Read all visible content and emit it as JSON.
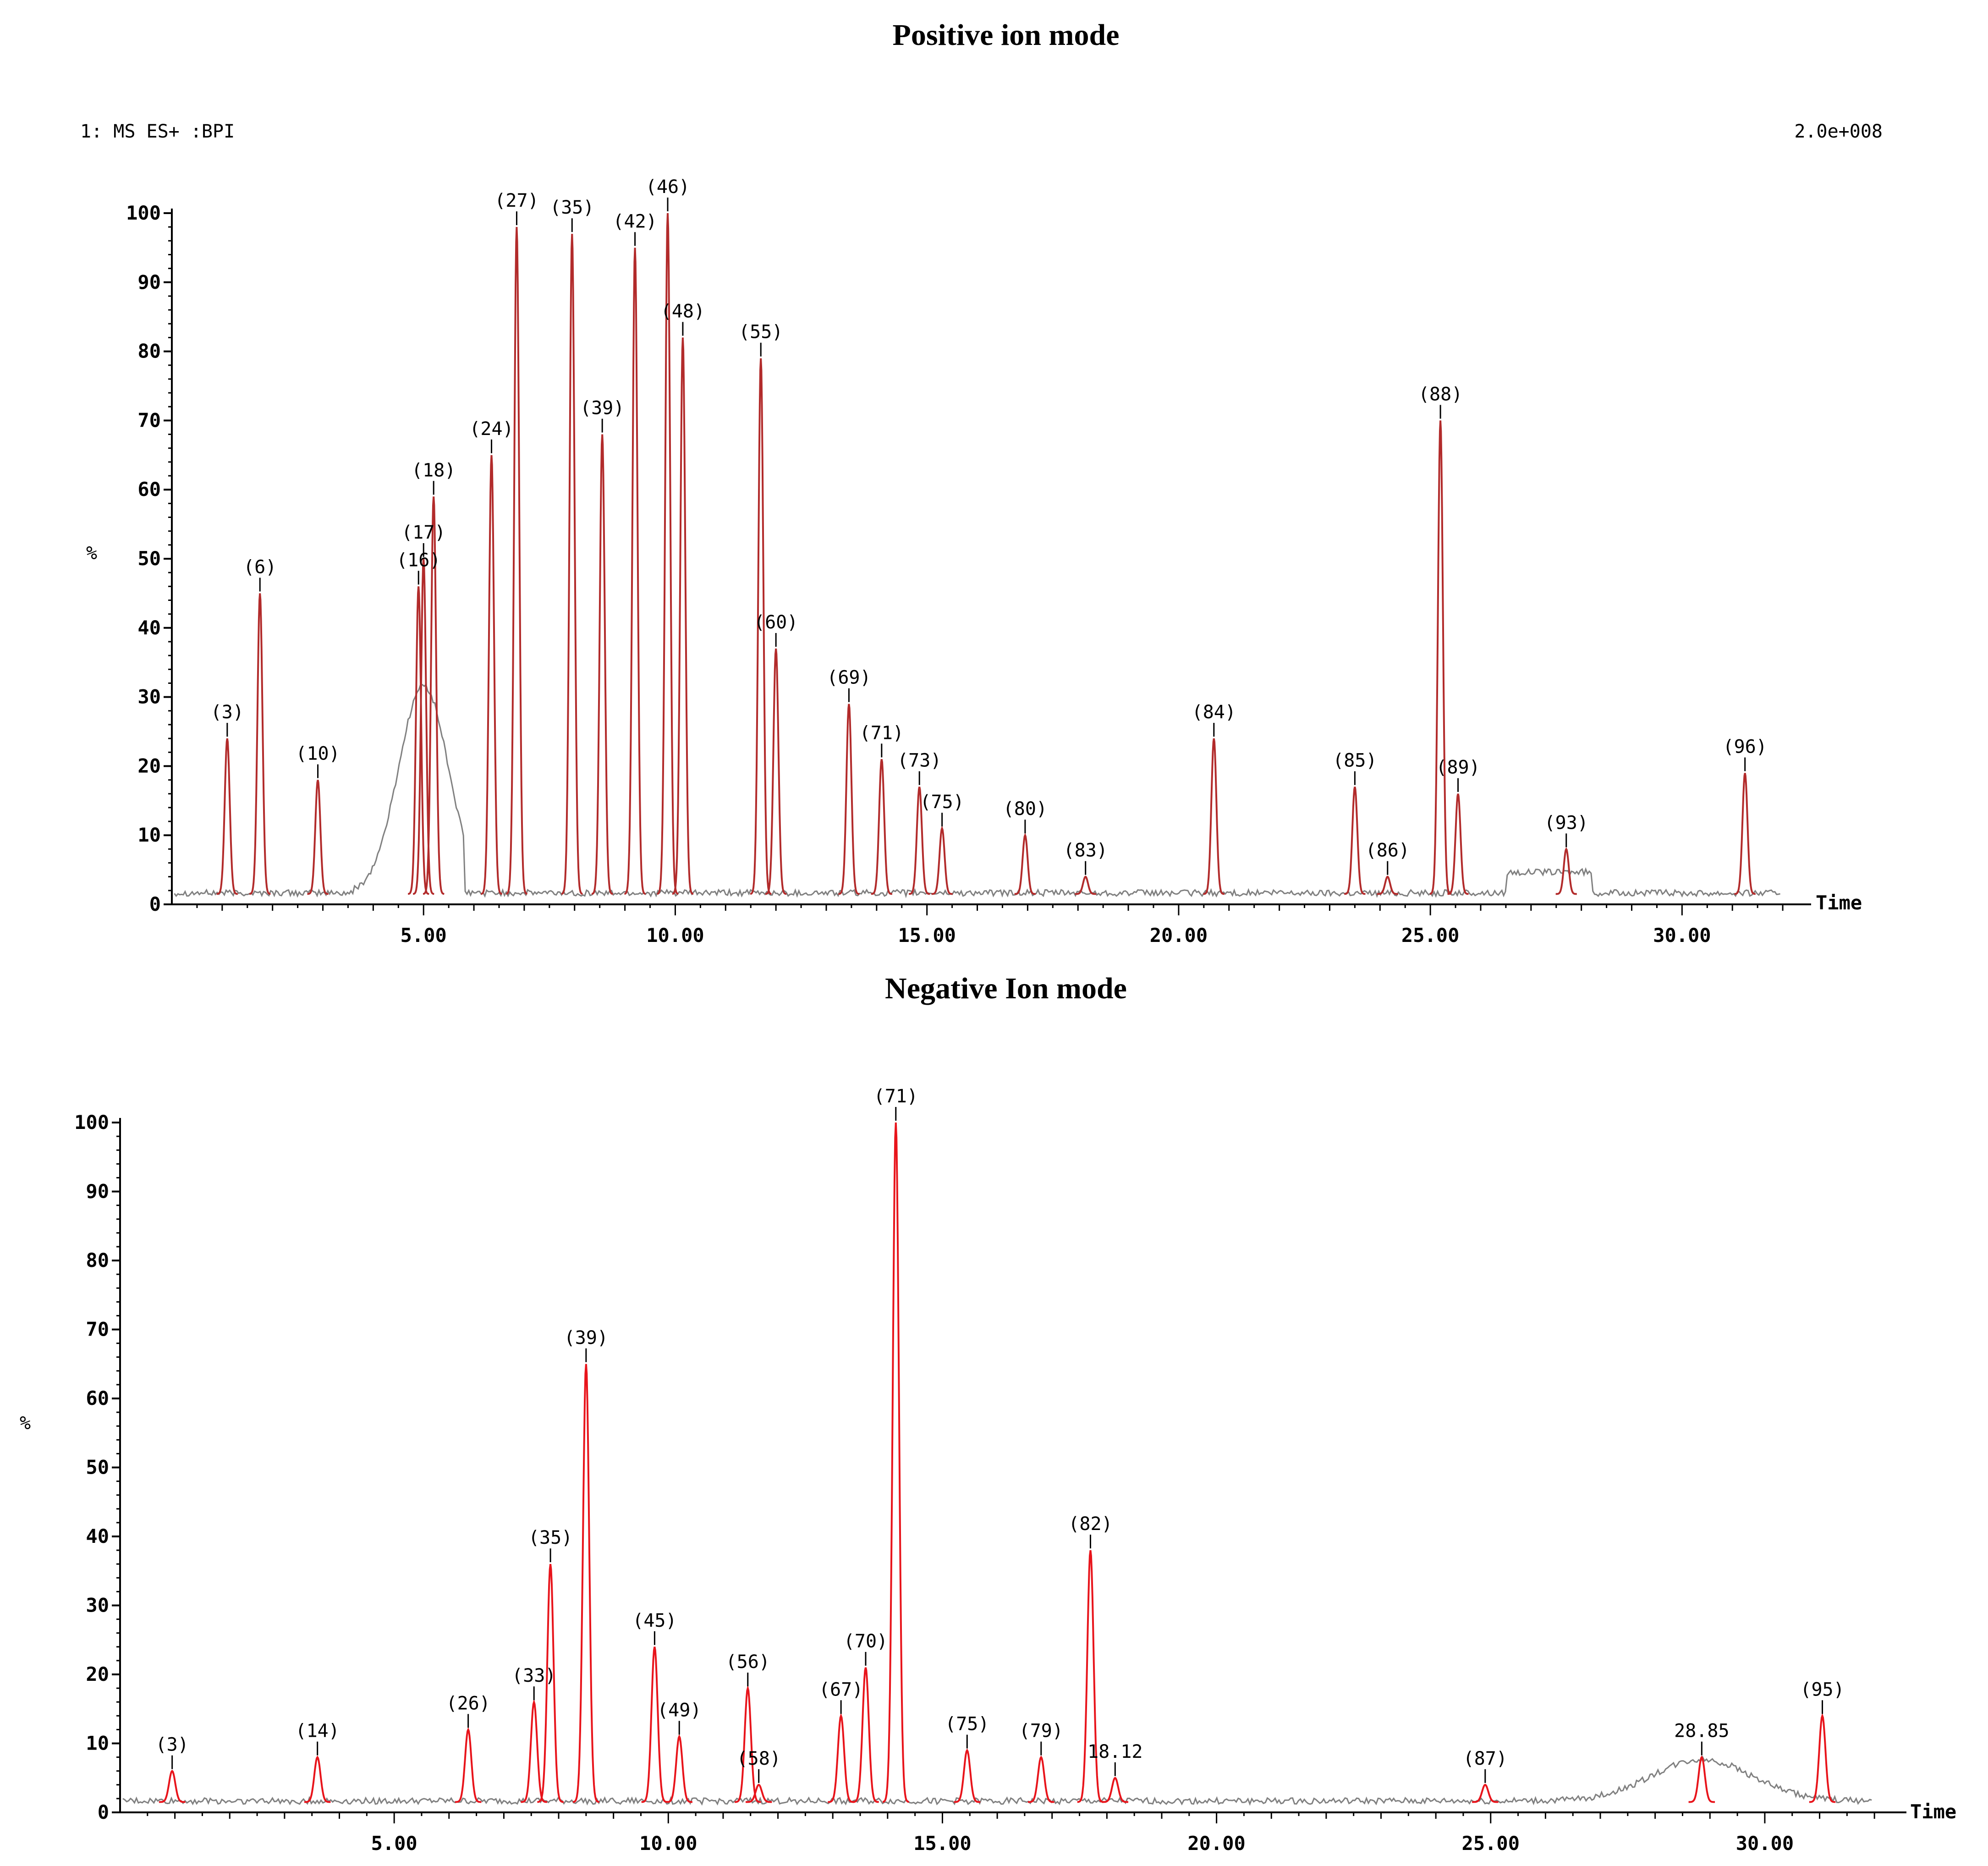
{
  "chart_data": [
    {
      "type": "line",
      "title": "Positive ion mode",
      "header_left": "1: MS ES+ :BPI",
      "header_right": "2.0e+008",
      "xlabel": "Time",
      "ylabel": "%",
      "xlim": [
        0,
        32.5
      ],
      "ylim": [
        0,
        100
      ],
      "x_ticks": [
        "5.00",
        "10.00",
        "15.00",
        "20.00",
        "25.00",
        "30.00"
      ],
      "x_tick_values": [
        5,
        10,
        15,
        20,
        25,
        30
      ],
      "y_ticks": [
        "0",
        "10",
        "20",
        "30",
        "40",
        "50",
        "60",
        "70",
        "80",
        "90",
        "100"
      ],
      "y_tick_values": [
        0,
        10,
        20,
        30,
        40,
        50,
        60,
        70,
        80,
        90,
        100
      ],
      "colors": {
        "peak": "#b22b2b",
        "baseline": "#808080"
      },
      "peaks": [
        {
          "label": "(3)",
          "t": 1.1,
          "v": 24
        },
        {
          "label": "(6)",
          "t": 1.75,
          "v": 45
        },
        {
          "label": "(10)",
          "t": 2.9,
          "v": 18
        },
        {
          "label": "(16)",
          "t": 4.9,
          "v": 46
        },
        {
          "label": "(17)",
          "t": 5.0,
          "v": 50
        },
        {
          "label": "(18)",
          "t": 5.2,
          "v": 59
        },
        {
          "label": "(24)",
          "t": 6.35,
          "v": 65
        },
        {
          "label": "(27)",
          "t": 6.85,
          "v": 98
        },
        {
          "label": "(35)",
          "t": 7.95,
          "v": 97
        },
        {
          "label": "(39)",
          "t": 8.55,
          "v": 68
        },
        {
          "label": "(42)",
          "t": 9.2,
          "v": 95
        },
        {
          "label": "(46)",
          "t": 9.85,
          "v": 100
        },
        {
          "label": "(48)",
          "t": 10.15,
          "v": 82
        },
        {
          "label": "(55)",
          "t": 11.7,
          "v": 79
        },
        {
          "label": "(60)",
          "t": 12.0,
          "v": 37
        },
        {
          "label": "(69)",
          "t": 13.45,
          "v": 29
        },
        {
          "label": "(71)",
          "t": 14.1,
          "v": 21
        },
        {
          "label": "(73)",
          "t": 14.85,
          "v": 17
        },
        {
          "label": "(75)",
          "t": 15.3,
          "v": 11
        },
        {
          "label": "(80)",
          "t": 16.95,
          "v": 10
        },
        {
          "label": "(83)",
          "t": 18.15,
          "v": 4
        },
        {
          "label": "(84)",
          "t": 20.7,
          "v": 24
        },
        {
          "label": "(85)",
          "t": 23.5,
          "v": 17
        },
        {
          "label": "(86)",
          "t": 24.15,
          "v": 4
        },
        {
          "label": "(88)",
          "t": 25.2,
          "v": 70
        },
        {
          "label": "(89)",
          "t": 25.55,
          "v": 16
        },
        {
          "label": "(93)",
          "t": 27.7,
          "v": 8
        },
        {
          "label": "(96)",
          "t": 31.25,
          "v": 19
        }
      ]
    },
    {
      "type": "line",
      "title": "Negative Ion mode",
      "xlabel": "Time",
      "ylabel": "%",
      "xlim": [
        0,
        32.5
      ],
      "ylim": [
        0,
        100
      ],
      "x_ticks": [
        "5.00",
        "10.00",
        "15.00",
        "20.00",
        "25.00",
        "30.00"
      ],
      "x_tick_values": [
        5,
        10,
        15,
        20,
        25,
        30
      ],
      "y_ticks": [
        "0",
        "10",
        "20",
        "30",
        "40",
        "50",
        "60",
        "70",
        "80",
        "90",
        "100"
      ],
      "y_tick_values": [
        0,
        10,
        20,
        30,
        40,
        50,
        60,
        70,
        80,
        90,
        100
      ],
      "colors": {
        "peak": "#e8141b",
        "baseline": "#808080"
      },
      "peaks": [
        {
          "label": "(3)",
          "t": 0.95,
          "v": 6
        },
        {
          "label": "(14)",
          "t": 3.6,
          "v": 8
        },
        {
          "label": "(26)",
          "t": 6.35,
          "v": 12
        },
        {
          "label": "(33)",
          "t": 7.55,
          "v": 16
        },
        {
          "label": "(35)",
          "t": 7.85,
          "v": 36
        },
        {
          "label": "(39)",
          "t": 8.5,
          "v": 65
        },
        {
          "label": "(45)",
          "t": 9.75,
          "v": 24
        },
        {
          "label": "(49)",
          "t": 10.2,
          "v": 11
        },
        {
          "label": "(56)",
          "t": 11.45,
          "v": 18
        },
        {
          "label": "(58)",
          "t": 11.65,
          "v": 4
        },
        {
          "label": "(67)",
          "t": 13.15,
          "v": 14
        },
        {
          "label": "(70)",
          "t": 13.6,
          "v": 21
        },
        {
          "label": "(71)",
          "t": 14.15,
          "v": 100
        },
        {
          "label": "(75)",
          "t": 15.45,
          "v": 9
        },
        {
          "label": "(79)",
          "t": 16.8,
          "v": 8
        },
        {
          "label": "(82)",
          "t": 17.7,
          "v": 38
        },
        {
          "label": "18.12",
          "t": 18.15,
          "v": 5
        },
        {
          "label": "(87)",
          "t": 24.9,
          "v": 4
        },
        {
          "label": "28.85",
          "t": 28.85,
          "v": 8
        },
        {
          "label": "(95)",
          "t": 31.05,
          "v": 14
        }
      ]
    }
  ]
}
